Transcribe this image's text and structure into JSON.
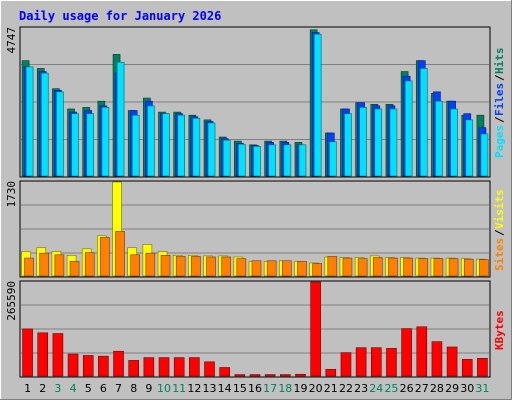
{
  "chart_data": {
    "title": "Daily usage for January 2026",
    "type": "bar",
    "categories": [
      "1",
      "2",
      "3",
      "4",
      "5",
      "6",
      "7",
      "8",
      "9",
      "10",
      "11",
      "12",
      "13",
      "14",
      "15",
      "16",
      "17",
      "18",
      "19",
      "20",
      "21",
      "22",
      "23",
      "24",
      "25",
      "26",
      "27",
      "28",
      "29",
      "30",
      "31"
    ],
    "weekend_days": [
      "3",
      "4",
      "10",
      "11",
      "17",
      "18",
      "24",
      "25",
      "31"
    ],
    "colors": {
      "background": "#c0c0c0",
      "frame": "#808080",
      "title": "#0000ff",
      "hits": "#008060",
      "files": "#0040ff",
      "pages": "#00e0ff",
      "visits": "#ffff00",
      "sites": "#ff8000",
      "kbytes": "#ff0000",
      "weekday_label": "#000000",
      "weekend_label": "#00805c"
    },
    "panels": [
      {
        "id": "hits_files_pages",
        "max_label": "4747",
        "ylim": [
          0,
          4747
        ],
        "legend": [
          "Pages",
          "Files",
          "Hits"
        ],
        "series": [
          {
            "name": "Hits",
            "color": "#008060",
            "values": [
              3700,
              3450,
              2800,
              2150,
              2200,
              2400,
              3900,
              2100,
              2500,
              2050,
              2050,
              1950,
              1800,
              1250,
              1120,
              1000,
              1120,
              1120,
              1080,
              4690,
              1380,
              2150,
              2350,
              2300,
              2300,
              3350,
              3700,
              2650,
              2400,
              1950,
              1950
            ]
          },
          {
            "name": "Files",
            "color": "#0040ff",
            "values": [
              3500,
              3350,
              2750,
              2050,
              2100,
              2250,
              3300,
              2100,
              2400,
              2000,
              2000,
              1900,
              1750,
              1200,
              1050,
              980,
              1080,
              1080,
              1000,
              4600,
              1380,
              2150,
              2350,
              2250,
              2250,
              3200,
              3700,
              2700,
              2400,
              2000,
              1550
            ]
          },
          {
            "name": "Pages",
            "color": "#00e0ff",
            "values": [
              3500,
              3300,
              2700,
              2000,
              2000,
              2200,
              3650,
              1950,
              2250,
              2000,
              1950,
              1850,
              1700,
              1150,
              1020,
              950,
              1000,
              1000,
              1000,
              4550,
              1100,
              2000,
              2200,
              2150,
              2150,
              3050,
              3450,
              2400,
              2150,
              1800,
              1350
            ]
          }
        ]
      },
      {
        "id": "visits_sites",
        "max_label": "1730",
        "ylim": [
          0,
          1730
        ],
        "legend": [
          "Sites",
          "Visits"
        ],
        "series": [
          {
            "name": "Visits",
            "color": "#ffff00",
            "values": [
              450,
              520,
              450,
              380,
              500,
              740,
              1730,
              520,
              580,
              450,
              380,
              380,
              370,
              370,
              350,
              270,
              270,
              280,
              270,
              240,
              350,
              340,
              340,
              370,
              340,
              340,
              330,
              330,
              330,
              320,
              310
            ]
          },
          {
            "name": "Sites",
            "color": "#ff8000",
            "values": [
              330,
              420,
              390,
              270,
              430,
              710,
              820,
              390,
              420,
              380,
              360,
              360,
              350,
              350,
              320,
              280,
              280,
              280,
              270,
              230,
              360,
              330,
              320,
              340,
              330,
              330,
              320,
              320,
              320,
              310,
              300
            ]
          }
        ]
      },
      {
        "id": "kbytes",
        "max_label": "265590",
        "ylim": [
          0,
          265590
        ],
        "legend": [
          "KBytes"
        ],
        "series": [
          {
            "name": "KBytes",
            "color": "#ff0000",
            "values": [
              133000,
              122000,
              120000,
              62000,
              58000,
              56000,
              70000,
              44000,
              52000,
              52000,
              52000,
              52000,
              40000,
              24000,
              4000,
              4000,
              4000,
              4000,
              5000,
              265590,
              19000,
              66000,
              80000,
              80000,
              78000,
              134000,
              139000,
              97000,
              82000,
              47000,
              50000
            ]
          }
        ]
      }
    ]
  }
}
